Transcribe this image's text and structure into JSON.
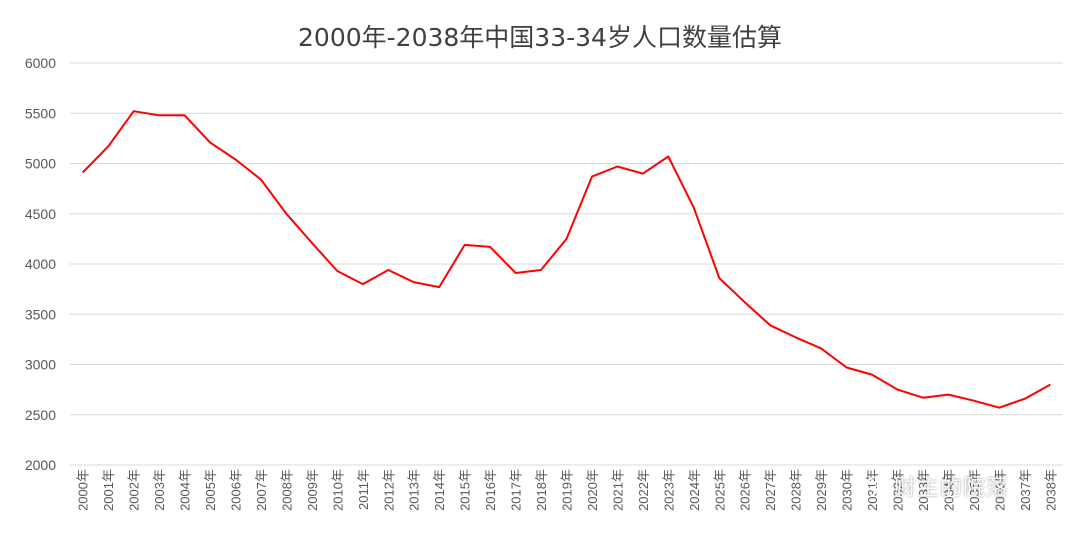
{
  "chart_data": {
    "type": "line",
    "title": "2000年-2038年中国33-34岁人口数量估算",
    "xlabel": "",
    "ylabel": "",
    "ylim": [
      2000,
      6000
    ],
    "yticks": [
      2000,
      2500,
      3000,
      3500,
      4000,
      4500,
      5000,
      5500,
      6000
    ],
    "grid": true,
    "categories": [
      "2000年",
      "2001年",
      "2002年",
      "2003年",
      "2004年",
      "2005年",
      "2006年",
      "2007年",
      "2008年",
      "2009年",
      "2010年",
      "2011年",
      "2012年",
      "2013年",
      "2014年",
      "2015年",
      "2016年",
      "2017年",
      "2018年",
      "2019年",
      "2020年",
      "2021年",
      "2022年",
      "2023年",
      "2024年",
      "2025年",
      "2026年",
      "2027年",
      "2028年",
      "2029年",
      "2030年",
      "2031年",
      "2032年",
      "2033年",
      "2034年",
      "2035年",
      "2036年",
      "2037年",
      "2038年"
    ],
    "series": [
      {
        "color": "#ff0000",
        "values": [
          4910,
          5170,
          5520,
          5480,
          5480,
          5210,
          5040,
          4840,
          4500,
          4210,
          3930,
          3800,
          3940,
          3820,
          3770,
          4190,
          4170,
          3910,
          3940,
          4250,
          4870,
          4970,
          4900,
          5070,
          4560,
          3860,
          3620,
          3390,
          3270,
          3160,
          2970,
          2900,
          2750,
          2670,
          2700,
          2640,
          2570,
          2660,
          2800
        ]
      }
    ]
  },
  "watermark": {
    "text": "财主的院落",
    "icon": "wechat-icon"
  }
}
